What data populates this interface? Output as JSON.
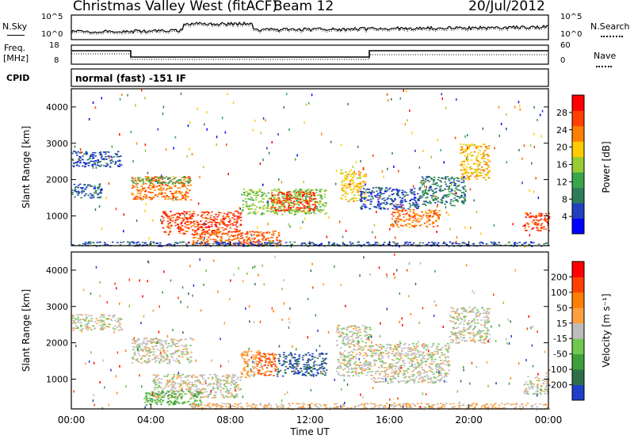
{
  "header": {
    "station": "Christmas Valley West (fitACF)",
    "beam": "Beam 12",
    "date": "20/Jul/2012"
  },
  "strip": {
    "nsky_label": "N.Sky",
    "nsearch_label": "N.Search",
    "noise_ticks": [
      "10^5",
      "10^0"
    ],
    "freq_label": "Freq.",
    "freq_unit": "[MHz]",
    "freq_ticks": [
      "18",
      "8"
    ],
    "nave_label": "Nave",
    "nave_ticks": [
      "60",
      "0"
    ],
    "cpid_label": "CPID",
    "cpid_text": "normal (fast) -151 IF"
  },
  "colors": {
    "power_scale": [
      "#0000ff",
      "#2040c0",
      "#2e7d5a",
      "#3aa64a",
      "#99cc33",
      "#ffcc00",
      "#ff8000",
      "#ff4000",
      "#ff0000"
    ],
    "velocity_scale": [
      "#1e40c8",
      "#2e6f4a",
      "#3f9f3a",
      "#70c850",
      "#bdbdbd",
      "#ffa040",
      "#ff8000",
      "#ff4000",
      "#ff0000"
    ],
    "ground_scatter": "#bdbdbd"
  },
  "chart_data": [
    {
      "type": "heatmap",
      "panel": "power",
      "ylabel": "Slant Range [km]",
      "xlabel": "",
      "ylim": [
        180,
        4500
      ],
      "xlim": [
        "00:00",
        "24:00"
      ],
      "yticks": [
        1000,
        2000,
        3000,
        4000
      ],
      "colorbar": {
        "label": "Power [dB]",
        "ticks": [
          4,
          8,
          12,
          16,
          20,
          24,
          28
        ],
        "range": [
          0,
          32
        ]
      },
      "regions": [
        {
          "t": [
            0.0,
            2.5
          ],
          "r": [
            2350,
            2800
          ],
          "value": 6
        },
        {
          "t": [
            0.0,
            1.5
          ],
          "r": [
            1500,
            1900
          ],
          "value": 7
        },
        {
          "t": [
            3.0,
            6.0
          ],
          "r": [
            1450,
            2100
          ],
          "value": 24
        },
        {
          "t": [
            3.0,
            6.0
          ],
          "r": [
            1900,
            2100
          ],
          "value": 12
        },
        {
          "t": [
            4.5,
            8.5
          ],
          "r": [
            500,
            1150
          ],
          "value": 27
        },
        {
          "t": [
            6.0,
            10.5
          ],
          "r": [
            200,
            600
          ],
          "value": 25
        },
        {
          "t": [
            8.5,
            12.8
          ],
          "r": [
            1050,
            1750
          ],
          "value": 15
        },
        {
          "t": [
            10.0,
            12.3
          ],
          "r": [
            1150,
            1700
          ],
          "value": 27
        },
        {
          "t": [
            13.5,
            14.8
          ],
          "r": [
            1400,
            2300
          ],
          "value": 20
        },
        {
          "t": [
            14.5,
            17.5
          ],
          "r": [
            1200,
            1800
          ],
          "value": 6
        },
        {
          "t": [
            16.0,
            18.5
          ],
          "r": [
            700,
            1200
          ],
          "value": 24
        },
        {
          "t": [
            17.5,
            19.8
          ],
          "r": [
            1300,
            2100
          ],
          "value": 9
        },
        {
          "t": [
            19.5,
            21.0
          ],
          "r": [
            2000,
            3000
          ],
          "value": 20
        },
        {
          "t": [
            22.7,
            24.0
          ],
          "r": [
            600,
            1100
          ],
          "value": 27
        },
        {
          "t": [
            0.0,
            24.0
          ],
          "r": [
            180,
            300
          ],
          "value": 6
        }
      ]
    },
    {
      "type": "heatmap",
      "panel": "velocity",
      "ylabel": "Slant Range [km]",
      "xlabel": "Time UT",
      "ylim": [
        180,
        4500
      ],
      "xlim": [
        "00:00",
        "24:00"
      ],
      "xticks": [
        "00:00",
        "04:00",
        "08:00",
        "12:00",
        "16:00",
        "20:00",
        "00:00"
      ],
      "yticks": [
        1000,
        2000,
        3000,
        4000
      ],
      "colorbar": {
        "label": "Velocity [m s⁻¹]",
        "ticks": [
          200,
          100,
          50,
          15,
          -15,
          -50,
          -100,
          -200
        ],
        "range": [
          -250,
          250
        ]
      },
      "regions": [
        {
          "t": [
            0.0,
            2.5
          ],
          "r": [
            2350,
            2800
          ],
          "value": 0
        },
        {
          "t": [
            3.0,
            6.0
          ],
          "r": [
            1450,
            2150
          ],
          "value": 0
        },
        {
          "t": [
            4.0,
            8.5
          ],
          "r": [
            500,
            1150
          ],
          "value": 0
        },
        {
          "t": [
            3.5,
            6.5
          ],
          "r": [
            300,
            700
          ],
          "value": -80
        },
        {
          "t": [
            8.5,
            9.5
          ],
          "r": [
            1050,
            1800
          ],
          "value": 60
        },
        {
          "t": [
            9.3,
            10.3
          ],
          "r": [
            1100,
            1750
          ],
          "value": 150
        },
        {
          "t": [
            10.3,
            12.8
          ],
          "r": [
            1100,
            1750
          ],
          "value": -200
        },
        {
          "t": [
            13.3,
            15.0
          ],
          "r": [
            1100,
            2500
          ],
          "value": 0
        },
        {
          "t": [
            15.0,
            19.0
          ],
          "r": [
            900,
            2000
          ],
          "value": 0
        },
        {
          "t": [
            19.0,
            21.0
          ],
          "r": [
            2000,
            3000
          ],
          "value": 0
        },
        {
          "t": [
            22.7,
            24.0
          ],
          "r": [
            600,
            1100
          ],
          "value": 0
        },
        {
          "t": [
            6.0,
            24.0
          ],
          "r": [
            180,
            350
          ],
          "value": 40
        }
      ]
    }
  ]
}
